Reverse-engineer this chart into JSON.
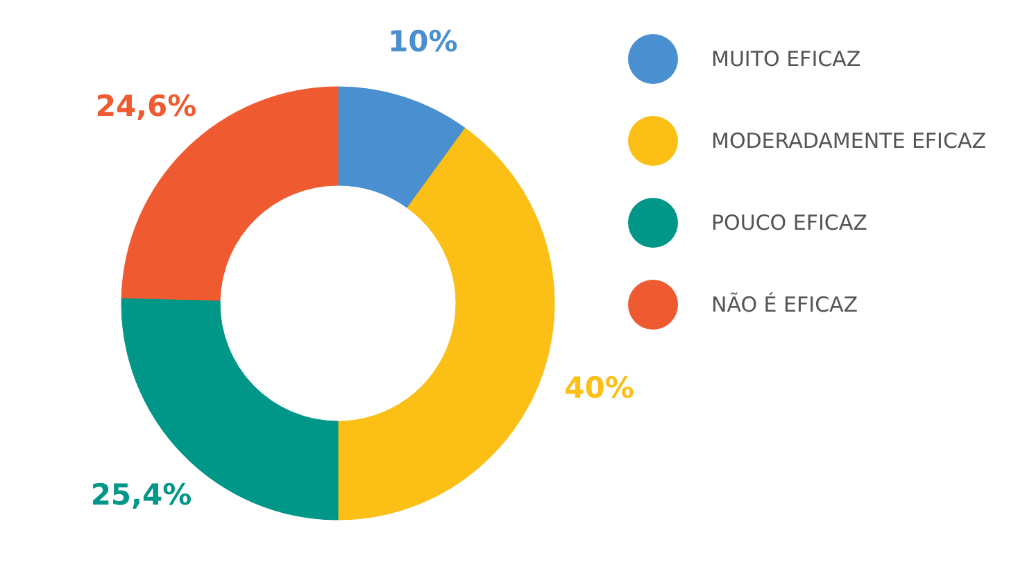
{
  "chart_data": {
    "type": "donut",
    "categories": [
      "MUITO EFICAZ",
      "MODERADAMENTE EFICAZ",
      "POUCO EFICAZ",
      "NÃO É EFICAZ"
    ],
    "values": [
      10,
      40,
      25.4,
      24.6
    ],
    "colors": [
      "#4a8fd0",
      "#fbbf16",
      "#009688",
      "#f05a30"
    ],
    "value_labels": [
      "10%",
      "40%",
      "25,4%",
      "24,6%"
    ],
    "legend": "right"
  }
}
